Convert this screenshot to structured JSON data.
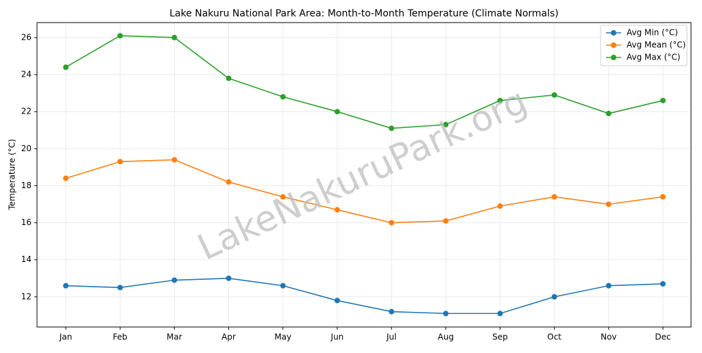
{
  "chart_data": {
    "type": "line",
    "title": "Lake Nakuru National Park Area: Month-to-Month Temperature (Climate Normals)",
    "y_label": "Temperature (°C)",
    "watermark": "LakeNakuruPark.org",
    "categories": [
      "Jan",
      "Feb",
      "Mar",
      "Apr",
      "May",
      "Jun",
      "Jul",
      "Aug",
      "Sep",
      "Oct",
      "Nov",
      "Dec"
    ],
    "series": [
      {
        "name": "Avg Min (°C)",
        "color": "#1f77b4",
        "values": [
          12.6,
          12.5,
          12.9,
          13.0,
          12.6,
          11.8,
          11.2,
          11.1,
          11.1,
          12.0,
          12.6,
          12.7
        ]
      },
      {
        "name": "Avg Mean (°C)",
        "color": "#ff7f0e",
        "values": [
          18.4,
          19.3,
          19.4,
          18.2,
          17.4,
          16.7,
          16.0,
          16.1,
          16.9,
          17.4,
          17.0,
          17.4
        ]
      },
      {
        "name": "Avg Max (°C)",
        "color": "#2ca02c",
        "values": [
          24.4,
          26.1,
          26.0,
          23.8,
          22.8,
          22.0,
          21.1,
          21.3,
          22.6,
          22.9,
          21.9,
          22.6
        ]
      }
    ],
    "ylim": [
      10.37,
      26.81
    ],
    "yticks": [
      12,
      14,
      16,
      18,
      20,
      22,
      24,
      26
    ],
    "grid": true,
    "legend": "upper right"
  }
}
